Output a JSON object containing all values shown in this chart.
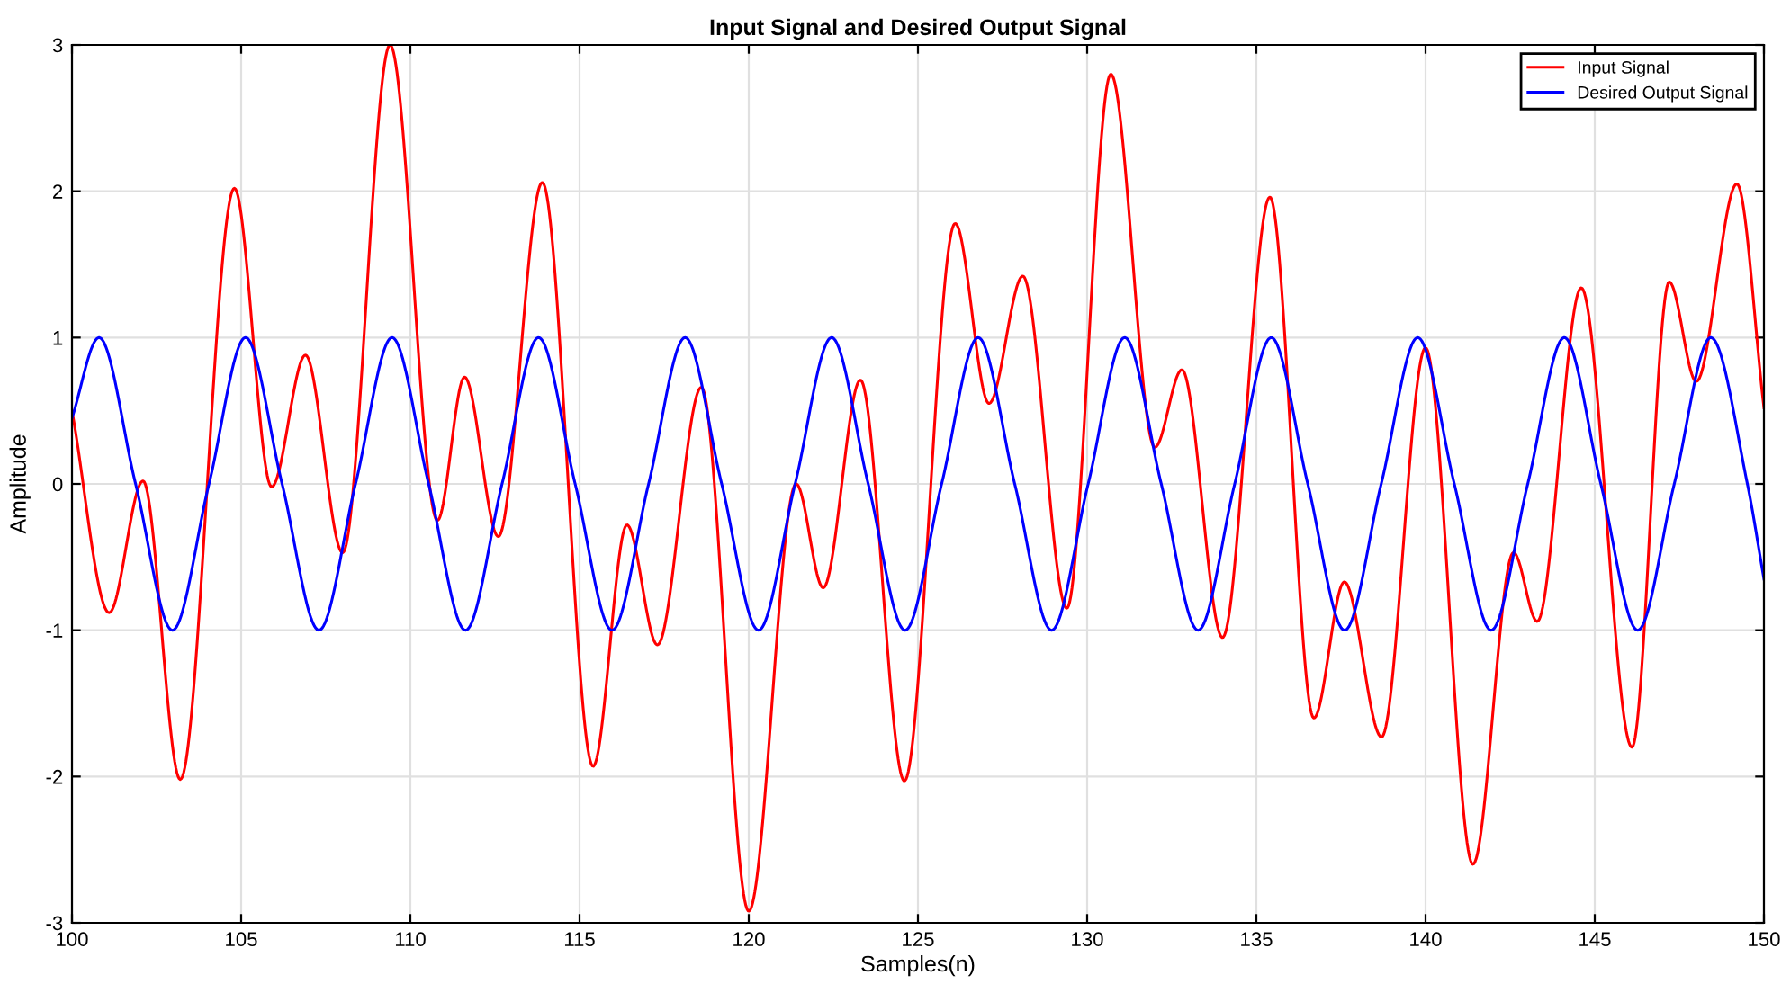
{
  "chart_data": {
    "type": "line",
    "title": "Input Signal and Desired Output Signal",
    "xlabel": "Samples(n)",
    "ylabel": "Amplitude",
    "series": [
      {
        "name": "Input Signal",
        "color": "#ff0000",
        "x": [
          100,
          101.1,
          102.1,
          103.2,
          104.8,
          105.9,
          106.9,
          108.0,
          109.4,
          110.8,
          111.6,
          112.6,
          113.9,
          115.4,
          116.4,
          117.3,
          118.6,
          120.0,
          121.4,
          122.2,
          123.3,
          124.6,
          126.1,
          127.1,
          128.1,
          129.4,
          130.7,
          132.0,
          132.8,
          134.0,
          135.4,
          136.7,
          137.6,
          138.7,
          140.0,
          141.4,
          142.6,
          143.3,
          144.6,
          146.1,
          147.2,
          148.0,
          149.2,
          150
        ],
        "values": [
          0.5,
          -0.88,
          0.02,
          -2.02,
          2.02,
          -0.02,
          0.88,
          -0.47,
          3.0,
          -0.25,
          0.73,
          -0.36,
          2.06,
          -1.93,
          -0.28,
          -1.1,
          0.66,
          -2.92,
          0.0,
          -0.71,
          0.71,
          -2.03,
          1.78,
          0.55,
          1.42,
          -0.85,
          2.8,
          0.25,
          0.78,
          -1.05,
          1.96,
          -1.6,
          -0.67,
          -1.73,
          0.93,
          -2.6,
          -0.47,
          -0.94,
          1.34,
          -1.8,
          1.38,
          0.7,
          2.05,
          0.52
        ]
      },
      {
        "name": "Desired Output Signal",
        "color": "#0000ff",
        "x": [
          100,
          100.8,
          101.88,
          102.97,
          104.05,
          105.13,
          106.21,
          107.3,
          108.38,
          109.46,
          110.54,
          111.63,
          112.71,
          113.79,
          114.87,
          115.96,
          117.04,
          118.12,
          119.2,
          120.29,
          121.37,
          122.45,
          123.53,
          124.62,
          125.7,
          126.78,
          127.86,
          128.95,
          130.03,
          131.11,
          132.19,
          133.28,
          134.36,
          135.44,
          136.52,
          137.61,
          138.69,
          139.77,
          140.85,
          141.94,
          143.02,
          144.1,
          145.18,
          146.27,
          147.35,
          148.43,
          149.51,
          150
        ],
        "values": [
          0.45,
          1,
          0,
          -1,
          0,
          1,
          0,
          -1,
          0,
          1,
          0,
          -1,
          0,
          1,
          0,
          -1,
          0,
          1,
          0,
          -1,
          0,
          1,
          0,
          -1,
          0,
          1,
          0,
          -1,
          0,
          1,
          0,
          -1,
          0,
          1,
          0,
          -1,
          0,
          1,
          0,
          -1,
          0,
          1,
          0,
          -1,
          0,
          1,
          0,
          -0.65
        ]
      }
    ],
    "xlim": [
      100,
      150
    ],
    "ylim": [
      -3,
      3
    ],
    "xticks": [
      100,
      105,
      110,
      115,
      120,
      125,
      130,
      135,
      140,
      145,
      150
    ],
    "yticks": [
      -3,
      -2,
      -1,
      0,
      1,
      2,
      3
    ],
    "grid": true,
    "legend": "top right",
    "marker": "none",
    "line_style": "solid"
  }
}
